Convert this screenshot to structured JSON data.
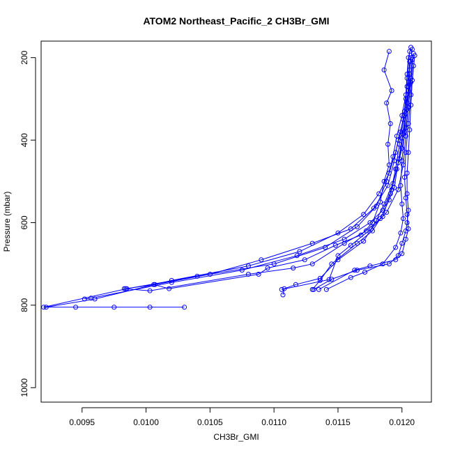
{
  "chart_data": {
    "type": "line",
    "title": "ATOM2 Northeast_Pacific_2 CH3Br_GMI",
    "xlabel": "CH3Br_GMI",
    "ylabel": "Pressure (mbar)",
    "xlim": [
      0.00918,
      0.01223
    ],
    "ylim": [
      1035,
      160
    ],
    "y_reversed": true,
    "x_ticks": [
      "0.0095",
      "0.0100",
      "0.0105",
      "0.0110",
      "0.0115",
      "0.0120"
    ],
    "x_tick_values": [
      0.0095,
      0.01,
      0.0105,
      0.011,
      0.0115,
      0.012
    ],
    "y_ticks": [
      "200",
      "400",
      "600",
      "800",
      "1000"
    ],
    "y_tick_values": [
      200,
      400,
      600,
      800,
      1000
    ],
    "marker": "open-circle",
    "grid": false,
    "legend": "none",
    "colors": {
      "series": "#0000ff",
      "axis": "#000000"
    },
    "series": [
      {
        "points": [
          [
            0.01207,
            175
          ],
          [
            0.01205,
            200
          ],
          [
            0.01204,
            240
          ],
          [
            0.01203,
            290
          ],
          [
            0.012,
            340
          ],
          [
            0.01196,
            390
          ],
          [
            0.01193,
            440
          ],
          [
            0.01188,
            500
          ],
          [
            0.0118,
            560
          ],
          [
            0.01165,
            610
          ],
          [
            0.0114,
            660
          ],
          [
            0.011,
            700
          ],
          [
            0.0104,
            730
          ],
          [
            0.00985,
            760
          ],
          [
            0.0092,
            805
          ],
          [
            0.00945,
            805
          ],
          [
            0.00975,
            805
          ],
          [
            0.01003,
            805
          ],
          [
            0.0103,
            805
          ]
        ]
      },
      {
        "points": [
          [
            0.01208,
            180
          ],
          [
            0.01206,
            230
          ],
          [
            0.01205,
            280
          ],
          [
            0.01202,
            330
          ],
          [
            0.01199,
            380
          ],
          [
            0.01195,
            430
          ],
          [
            0.0119,
            480
          ],
          [
            0.01182,
            530
          ],
          [
            0.0117,
            580
          ],
          [
            0.0115,
            625
          ],
          [
            0.0112,
            670
          ],
          [
            0.0108,
            705
          ],
          [
            0.0102,
            740
          ],
          [
            0.0096,
            785
          ],
          [
            0.00922,
            805
          ]
        ]
      },
      {
        "points": [
          [
            0.01206,
            185
          ],
          [
            0.01204,
            250
          ],
          [
            0.01203,
            300
          ],
          [
            0.01201,
            350
          ],
          [
            0.01197,
            400
          ],
          [
            0.01194,
            450
          ],
          [
            0.01189,
            510
          ],
          [
            0.01178,
            565
          ],
          [
            0.0116,
            615
          ],
          [
            0.0113,
            650
          ],
          [
            0.0109,
            690
          ],
          [
            0.0105,
            725
          ],
          [
            0.01007,
            750
          ],
          [
            0.00984,
            760
          ]
        ]
      },
      {
        "points": [
          [
            0.01209,
            190
          ],
          [
            0.01207,
            260
          ],
          [
            0.01205,
            320
          ],
          [
            0.01203,
            370
          ],
          [
            0.012,
            420
          ],
          [
            0.01196,
            470
          ],
          [
            0.01192,
            520
          ],
          [
            0.01185,
            570
          ],
          [
            0.01175,
            600
          ],
          [
            0.01155,
            640
          ],
          [
            0.01118,
            680
          ],
          [
            0.01075,
            715
          ],
          [
            0.0102,
            745
          ],
          [
            0.00957,
            783
          ],
          [
            0.00952,
            785
          ]
        ]
      },
      {
        "points": [
          [
            0.0119,
            185
          ],
          [
            0.01186,
            230
          ],
          [
            0.01192,
            280
          ],
          [
            0.01188,
            310
          ],
          [
            0.01191,
            360
          ],
          [
            0.01189,
            410
          ],
          [
            0.0119,
            460
          ],
          [
            0.01186,
            500
          ],
          [
            0.01183,
            550
          ],
          [
            0.01177,
            600
          ],
          [
            0.01168,
            630
          ],
          [
            0.01148,
            655
          ],
          [
            0.01124,
            690
          ],
          [
            0.01095,
            710
          ],
          [
            0.01088,
            725
          ],
          [
            0.01018,
            760
          ],
          [
            0.01006,
            750
          ]
        ]
      },
      {
        "points": [
          [
            0.01207,
            200
          ],
          [
            0.01204,
            270
          ],
          [
            0.01202,
            340
          ],
          [
            0.01198,
            410
          ],
          [
            0.01195,
            470
          ],
          [
            0.01191,
            530
          ],
          [
            0.01185,
            585
          ],
          [
            0.01172,
            620
          ],
          [
            0.01155,
            650
          ],
          [
            0.0113,
            700
          ],
          [
            0.01115,
            710
          ],
          [
            0.0108,
            725
          ],
          [
            0.01003,
            765
          ],
          [
            0.00983,
            760
          ]
        ]
      },
      {
        "points": [
          [
            0.01208,
            205
          ],
          [
            0.01206,
            265
          ],
          [
            0.01204,
            325
          ],
          [
            0.01201,
            385
          ],
          [
            0.01198,
            445
          ],
          [
            0.01193,
            505
          ],
          [
            0.01186,
            555
          ],
          [
            0.0118,
            595
          ],
          [
            0.0117,
            645
          ],
          [
            0.0115,
            690
          ],
          [
            0.01136,
            735
          ],
          [
            0.01117,
            750
          ],
          [
            0.01108,
            760
          ],
          [
            0.01107,
            775
          ]
        ]
      },
      {
        "points": [
          [
            0.01206,
            210
          ],
          [
            0.01205,
            270
          ],
          [
            0.01203,
            335
          ],
          [
            0.012,
            395
          ],
          [
            0.01197,
            455
          ],
          [
            0.01194,
            515
          ],
          [
            0.0119,
            545
          ],
          [
            0.01183,
            590
          ],
          [
            0.01177,
            620
          ],
          [
            0.01165,
            650
          ],
          [
            0.01145,
            700
          ],
          [
            0.01136,
            740
          ],
          [
            0.0113,
            762
          ]
        ]
      },
      {
        "points": [
          [
            0.0121,
            195
          ],
          [
            0.01208,
            255
          ],
          [
            0.01207,
            315
          ],
          [
            0.01206,
            375
          ],
          [
            0.01205,
            430
          ],
          [
            0.01204,
            480
          ],
          [
            0.01204,
            530
          ],
          [
            0.01205,
            570
          ],
          [
            0.01204,
            600
          ],
          [
            0.01203,
            620
          ],
          [
            0.012,
            650
          ],
          [
            0.01197,
            680
          ],
          [
            0.0119,
            700
          ],
          [
            0.01165,
            715
          ],
          [
            0.01145,
            737
          ],
          [
            0.01131,
            762
          ]
        ]
      },
      {
        "points": [
          [
            0.01209,
            220
          ],
          [
            0.01207,
            290
          ],
          [
            0.01205,
            360
          ],
          [
            0.01203,
            430
          ],
          [
            0.01202,
            490
          ],
          [
            0.01203,
            540
          ],
          [
            0.01204,
            580
          ],
          [
            0.01205,
            615
          ],
          [
            0.01203,
            640
          ],
          [
            0.012,
            675
          ],
          [
            0.01195,
            690
          ],
          [
            0.01175,
            705
          ],
          [
            0.01163,
            715
          ],
          [
            0.01135,
            762
          ]
        ]
      },
      {
        "points": [
          [
            0.01206,
            240
          ],
          [
            0.01204,
            310
          ],
          [
            0.01202,
            380
          ],
          [
            0.012,
            450
          ],
          [
            0.01199,
            510
          ],
          [
            0.012,
            555
          ],
          [
            0.01201,
            590
          ],
          [
            0.01199,
            625
          ],
          [
            0.01195,
            660
          ],
          [
            0.01185,
            700
          ],
          [
            0.01171,
            720
          ],
          [
            0.0116,
            733
          ],
          [
            0.01141,
            762
          ]
        ]
      },
      {
        "points": [
          [
            0.01207,
            250
          ],
          [
            0.01205,
            320
          ],
          [
            0.01203,
            390
          ],
          [
            0.01201,
            460
          ],
          [
            0.01197,
            520
          ],
          [
            0.01188,
            575
          ],
          [
            0.01176,
            615
          ],
          [
            0.0116,
            655
          ],
          [
            0.0115,
            680
          ],
          [
            0.01143,
            738
          ],
          [
            0.01106,
            762
          ]
        ]
      }
    ]
  }
}
